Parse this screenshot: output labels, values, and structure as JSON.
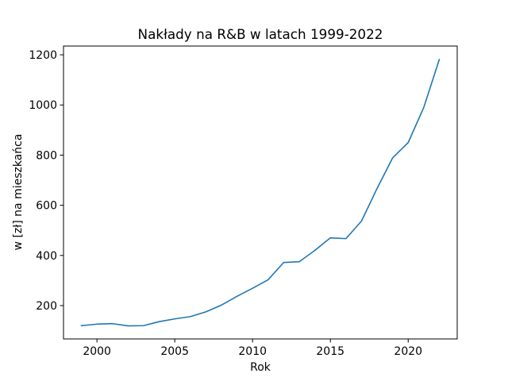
{
  "chart_data": {
    "type": "line",
    "title": "Nakłady na R&B w latach 1999-2022",
    "xlabel": "Rok",
    "ylabel": "w [zł] na mieszkańca",
    "xlim": [
      1997.85,
      2023.15
    ],
    "ylim": [
      67,
      1235
    ],
    "grid": false,
    "x_ticks": [
      2000,
      2005,
      2010,
      2015,
      2020
    ],
    "y_ticks": [
      200,
      400,
      600,
      800,
      1000,
      1200
    ],
    "series": [
      {
        "color": "#1f77b4",
        "x": [
          1999,
          2000,
          2001,
          2002,
          2003,
          2004,
          2005,
          2006,
          2007,
          2008,
          2009,
          2010,
          2011,
          2012,
          2013,
          2014,
          2015,
          2016,
          2017,
          2018,
          2019,
          2020,
          2021,
          2022
        ],
        "y": [
          120,
          126,
          128,
          119,
          120,
          136,
          147,
          156,
          175,
          202,
          237,
          269,
          303,
          372,
          375,
          420,
          470,
          467,
          537,
          667,
          789,
          850,
          990,
          1181
        ]
      }
    ]
  }
}
